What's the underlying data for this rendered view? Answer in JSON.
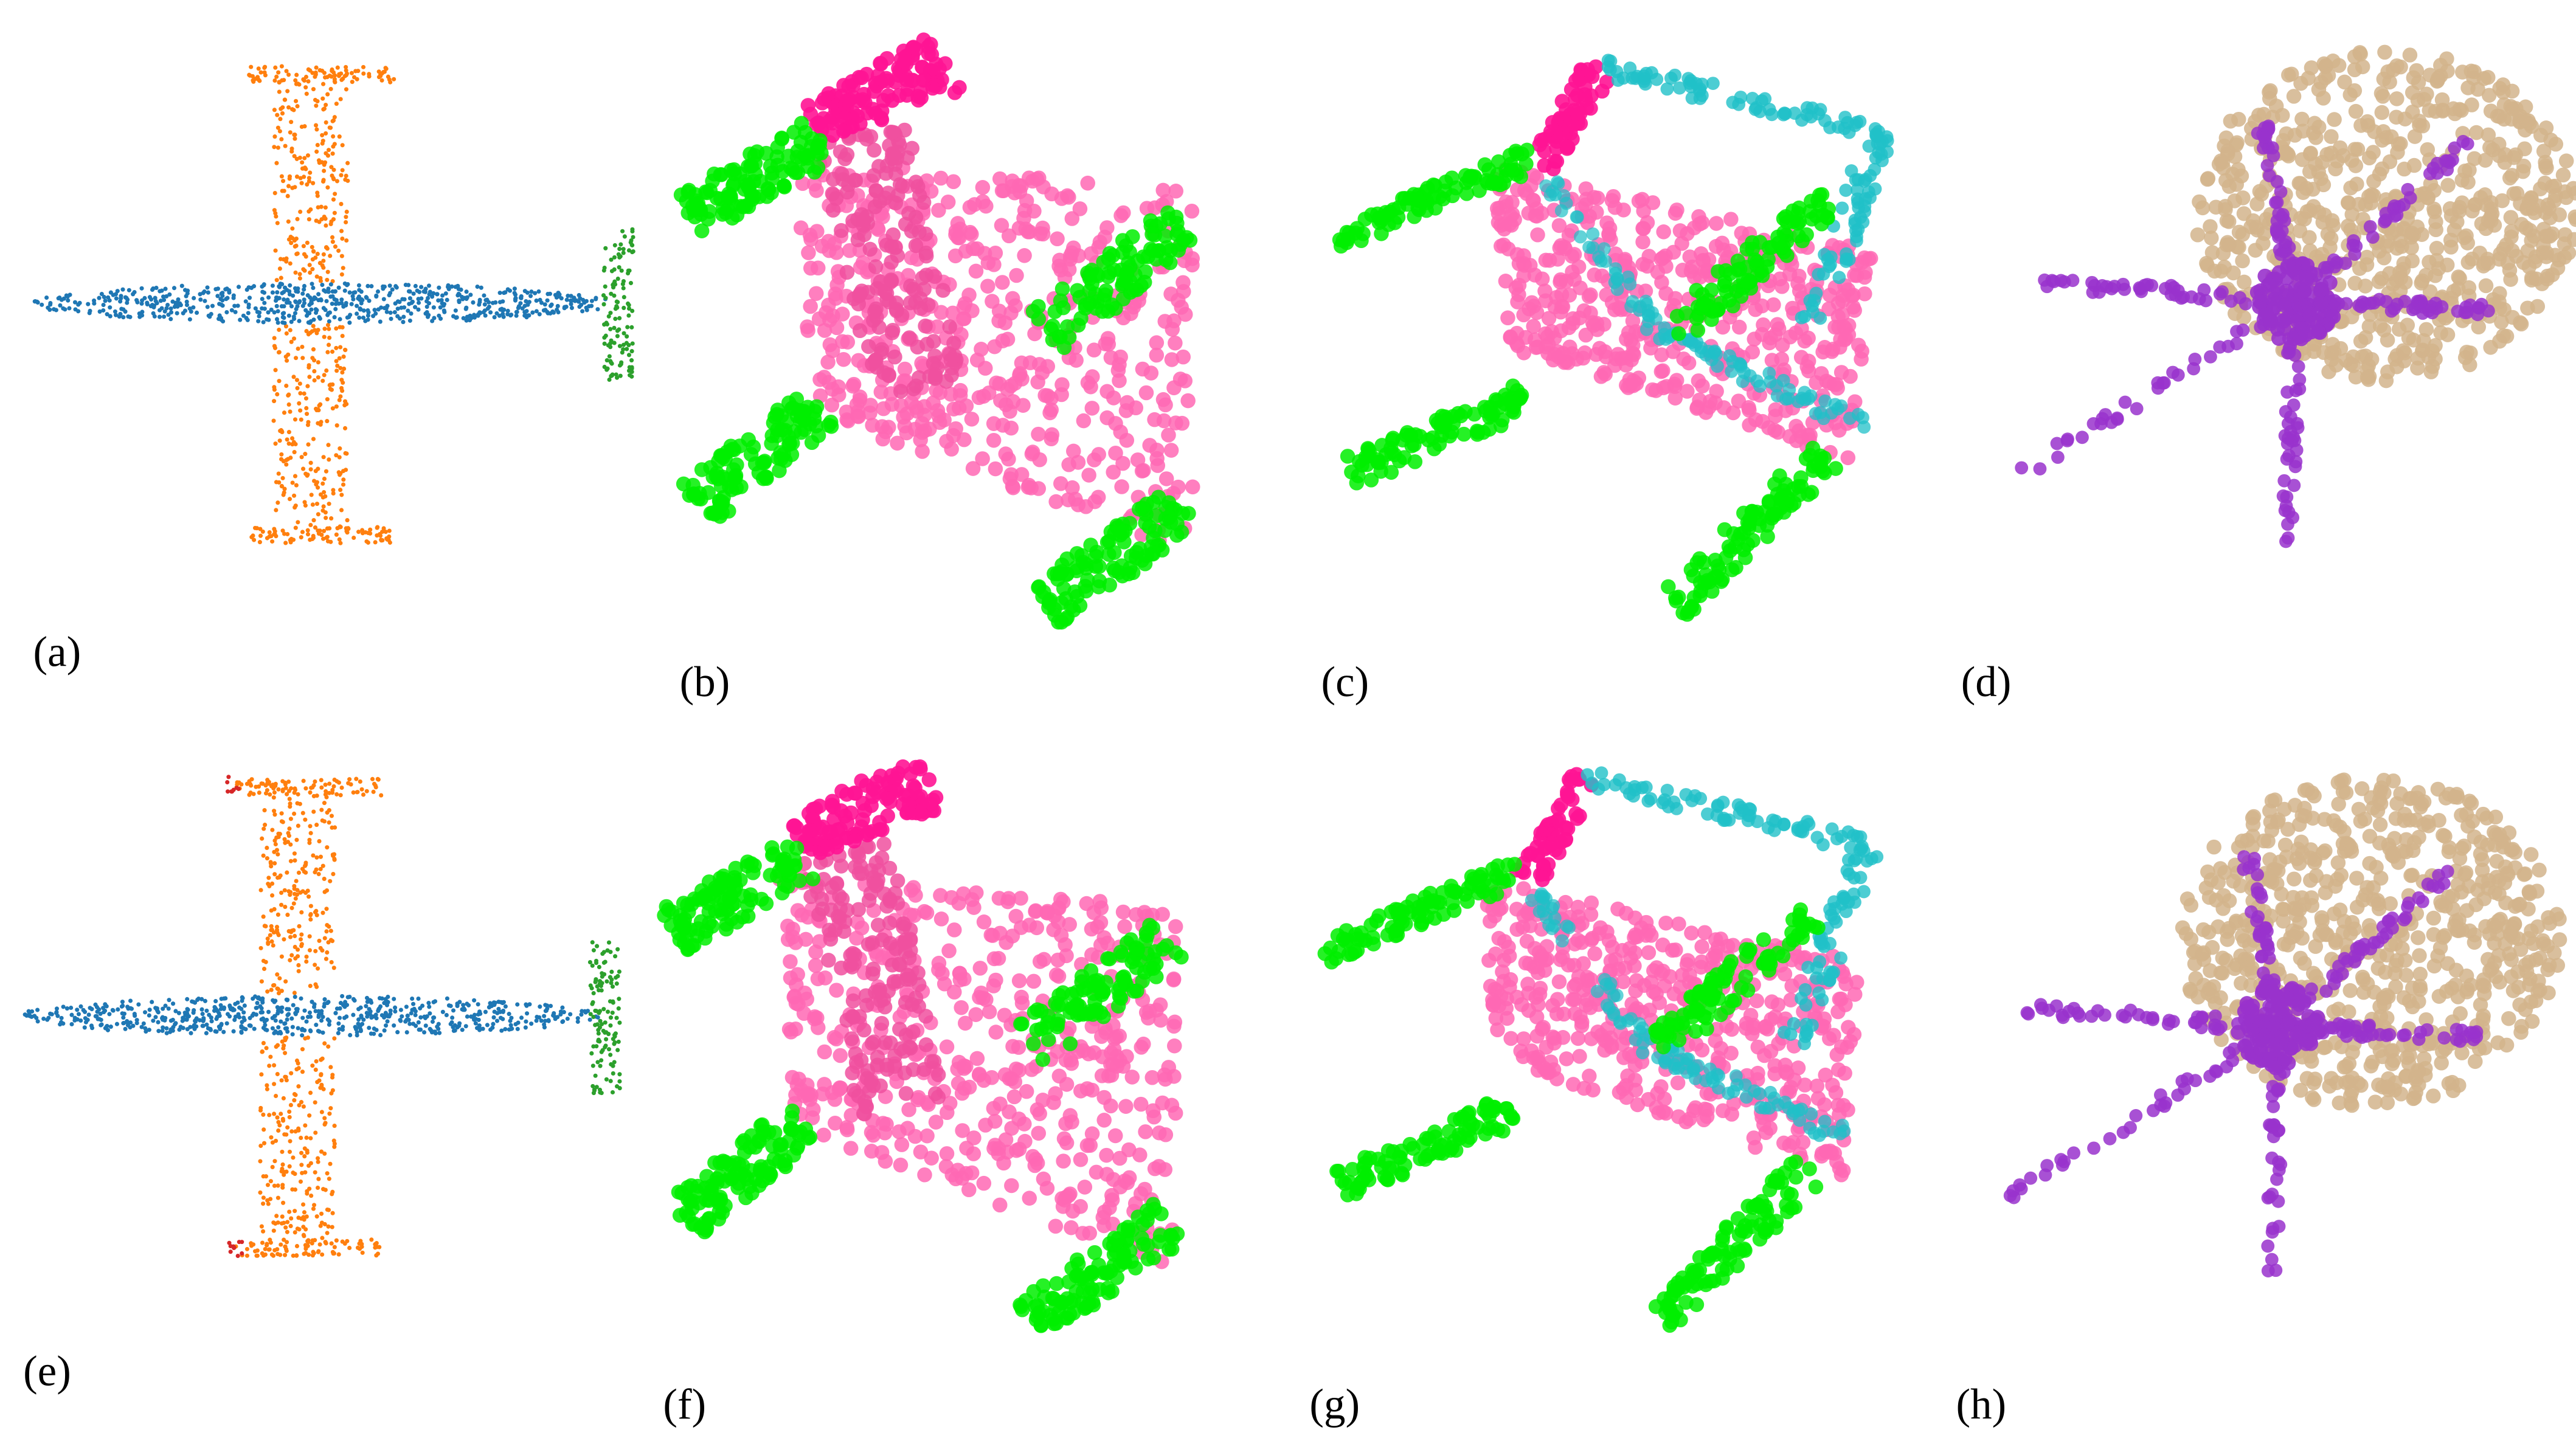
{
  "panels": {
    "labels": [
      "(a)",
      "(b)",
      "(c)",
      "(d)",
      "(e)",
      "(f)",
      "(g)",
      "(h)"
    ]
  }
}
